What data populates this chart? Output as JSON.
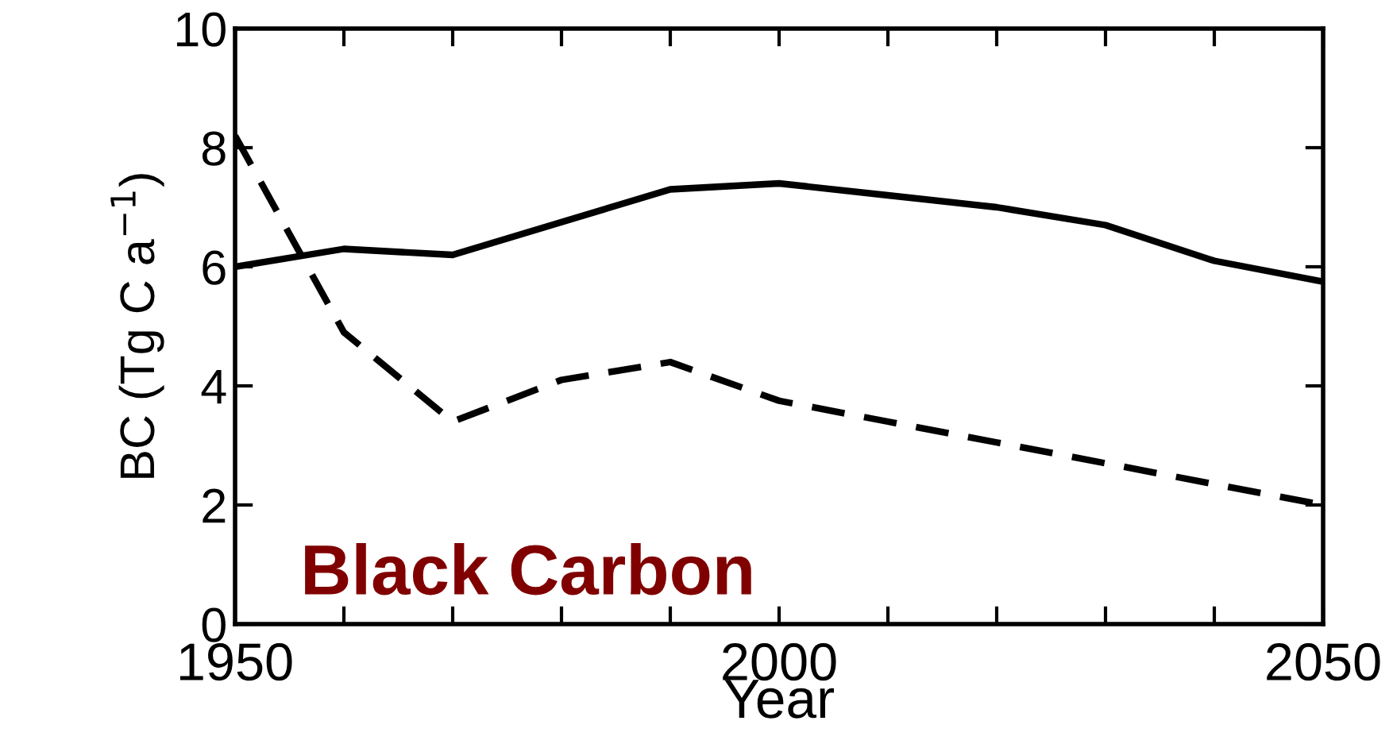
{
  "chart_data": {
    "type": "line",
    "xlabel": "Year",
    "ylabel": "BC (Tg C a$^{−1}$)",
    "x": [
      1950,
      1960,
      1970,
      1980,
      1990,
      2000,
      2010,
      2020,
      2030,
      2040,
      2050
    ],
    "series": [
      {
        "color": "#000000",
        "line_style": "solid",
        "values": [
          6.0,
          6.3,
          6.2,
          6.75,
          7.3,
          7.4,
          7.2,
          7.0,
          6.7,
          6.1,
          5.75
        ]
      },
      {
        "color": "#000000",
        "line_style": "dashed",
        "values": [
          8.2,
          4.9,
          3.4,
          4.1,
          4.4,
          3.75,
          3.4,
          3.05,
          2.7,
          2.35,
          2.0
        ]
      }
    ],
    "xlim": [
      1950,
      2050
    ],
    "ylim": [
      0,
      10
    ],
    "xticks": [
      1950,
      {
        "value": 1960,
        "label": null
      },
      {
        "value": 1970,
        "label": null
      },
      {
        "value": 1980,
        "label": null
      },
      {
        "value": 1990,
        "label": null
      },
      2000,
      {
        "value": 2010,
        "label": null
      },
      {
        "value": 2020,
        "label": null
      },
      {
        "value": 2030,
        "label": null
      },
      {
        "value": 2040,
        "label": null
      },
      2050
    ],
    "yticks": [
      0,
      2,
      4,
      6,
      8,
      10
    ],
    "grid": false,
    "legend": false,
    "marker": "none",
    "annotations": [
      "Black Carbon"
    ]
  }
}
